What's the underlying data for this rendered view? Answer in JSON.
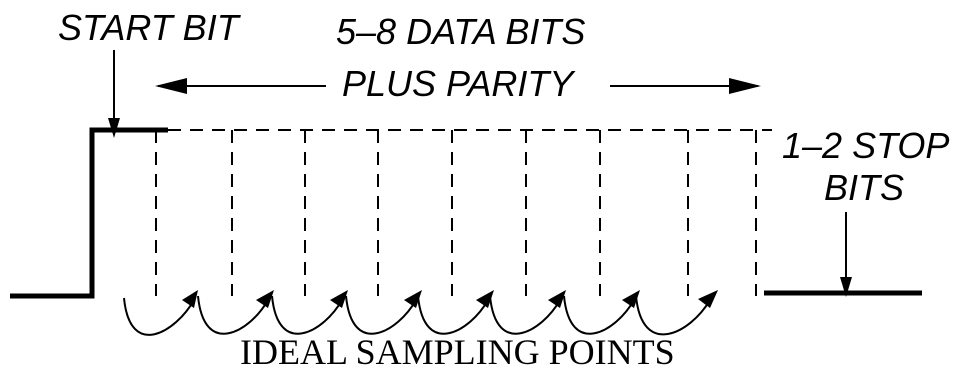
{
  "labels": {
    "start_bit": "START BIT",
    "data_bits_line1": "5–8 DATA BITS",
    "data_bits_line2": "PLUS PARITY",
    "stop_bits_line1": "1–2 STOP",
    "stop_bits_line2": "BITS",
    "sampling": "IDEAL SAMPLING POINTS"
  },
  "colors": {
    "ink": "#000000",
    "background": "#ffffff"
  }
}
